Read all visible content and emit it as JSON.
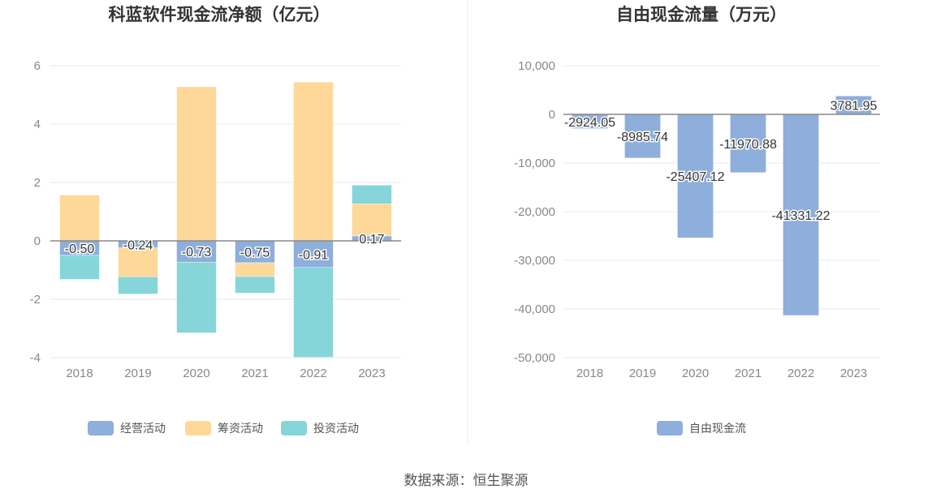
{
  "chart_data": [
    {
      "type": "bar",
      "stacked": true,
      "title": "科蓝软件现金流净额（亿元）",
      "categories": [
        "2018",
        "2019",
        "2020",
        "2021",
        "2022",
        "2023"
      ],
      "ylim": [
        -4,
        6
      ],
      "yticks": [
        -4,
        -2,
        0,
        2,
        4,
        6
      ],
      "grid": true,
      "legend_position": "bottom",
      "series": [
        {
          "name": "经营活动",
          "color": "#8eaedb",
          "values": [
            -0.5,
            -0.24,
            -0.73,
            -0.75,
            -0.91,
            0.17
          ],
          "labels": [
            "-0.50",
            "-0.24",
            "-0.73",
            "-0.75",
            "-0.91",
            "0.17"
          ]
        },
        {
          "name": "筹资活动",
          "color": "#fdd898",
          "values": [
            1.57,
            -0.99,
            5.28,
            -0.47,
            5.44,
            1.1
          ]
        },
        {
          "name": "投资活动",
          "color": "#86d5d9",
          "values": [
            -0.82,
            -0.59,
            -2.42,
            -0.57,
            -3.08,
            0.64
          ]
        }
      ]
    },
    {
      "type": "bar",
      "title": "自由现金流量（万元）",
      "categories": [
        "2018",
        "2019",
        "2020",
        "2021",
        "2022",
        "2023"
      ],
      "ylim": [
        -50000,
        10000
      ],
      "yticks": [
        -50000,
        -40000,
        -30000,
        -20000,
        -10000,
        0,
        10000
      ],
      "ytick_labels": [
        "-50,000",
        "-40,000",
        "-30,000",
        "-20,000",
        "-10,000",
        "0",
        "10,000"
      ],
      "grid": true,
      "legend_position": "bottom",
      "series": [
        {
          "name": "自由现金流",
          "color": "#8eaedb",
          "values": [
            -2924.05,
            -8985.74,
            -25407.12,
            -11970.88,
            -41331.22,
            3781.95
          ],
          "labels": [
            "-2924.05",
            "-8985.74",
            "-25407.12",
            "-11970.88",
            "-41331.22",
            "3781.95"
          ]
        }
      ]
    }
  ],
  "source": "数据来源：恒生聚源"
}
